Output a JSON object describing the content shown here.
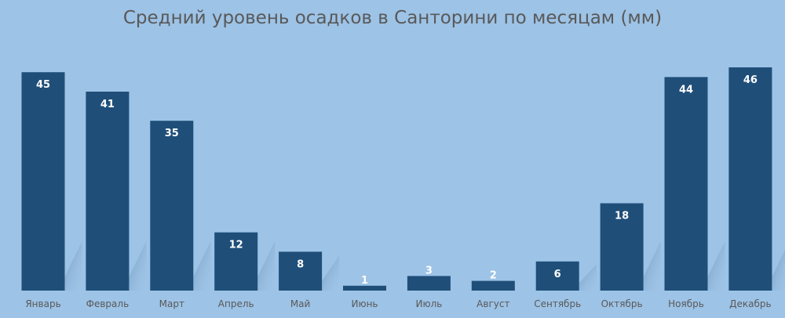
{
  "chart_data": {
    "type": "bar",
    "title": "Средний уровень осадков в Санторини по месяцам (мм)",
    "categories": [
      "Январь",
      "Февраль",
      "Март",
      "Апрель",
      "Май",
      "Июнь",
      "Июль",
      "Август",
      "Сентябрь",
      "Октябрь",
      "Ноябрь",
      "Декабрь"
    ],
    "series": [
      {
        "values": [
          45,
          41,
          35,
          12,
          8,
          1,
          3,
          2,
          6,
          18,
          44,
          46
        ]
      }
    ],
    "ylim": [
      0,
      46
    ],
    "grid": false,
    "bar_color": "#1f4e79",
    "label_color": "#ffffff",
    "category_color": "#595959",
    "background": "#9dc3e6"
  }
}
